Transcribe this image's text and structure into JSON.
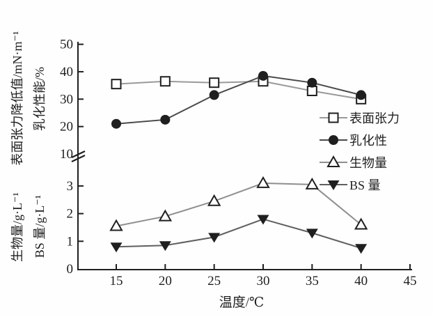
{
  "figure": {
    "background": "#fefefe",
    "ink_color": "#1f1f1f"
  },
  "axes": {
    "x": {
      "label": "温度/℃",
      "ticks": [
        15,
        20,
        25,
        30,
        35,
        40,
        45
      ]
    },
    "y_top": {
      "label_outer": "表面张力降低值/mN·m⁻¹",
      "label_inner": "乳化性能/%",
      "ticks": [
        10,
        20,
        30,
        40,
        50
      ]
    },
    "y_bottom": {
      "label_outer": "生物量/g·L⁻¹",
      "label_inner": "BS 量/g·L⁻¹",
      "ticks": [
        0,
        1,
        2,
        3
      ]
    },
    "broken_axis": true
  },
  "chart_data": {
    "type": "line",
    "title": "",
    "xlabel": "温度/℃",
    "x": [
      15,
      20,
      25,
      30,
      35,
      40
    ],
    "xlim": [
      12,
      46
    ],
    "ylim_top": [
      10,
      50
    ],
    "ylim_bottom": [
      0,
      3
    ],
    "grid": false,
    "legend_position": "middle-right",
    "series": [
      {
        "name": "表面张力",
        "axis": "top",
        "marker": "open-square",
        "line_color": "#9a9a9a",
        "values": [
          35.5,
          36.5,
          36.0,
          36.5,
          33.0,
          30.0
        ]
      },
      {
        "name": "乳化性",
        "axis": "top",
        "marker": "filled-circle",
        "line_color": "#4a4a4a",
        "values": [
          21.0,
          22.5,
          31.5,
          38.5,
          36.0,
          31.5
        ]
      },
      {
        "name": "生物量",
        "axis": "bottom",
        "marker": "open-triangle-up",
        "line_color": "#8f8f8f",
        "values": [
          1.55,
          1.9,
          2.45,
          3.1,
          3.05,
          1.6
        ]
      },
      {
        "name": "BS 量",
        "axis": "bottom",
        "marker": "filled-triangle-down",
        "line_color": "#5f5f5f",
        "values": [
          0.8,
          0.85,
          1.15,
          1.8,
          1.3,
          0.75
        ]
      }
    ]
  }
}
